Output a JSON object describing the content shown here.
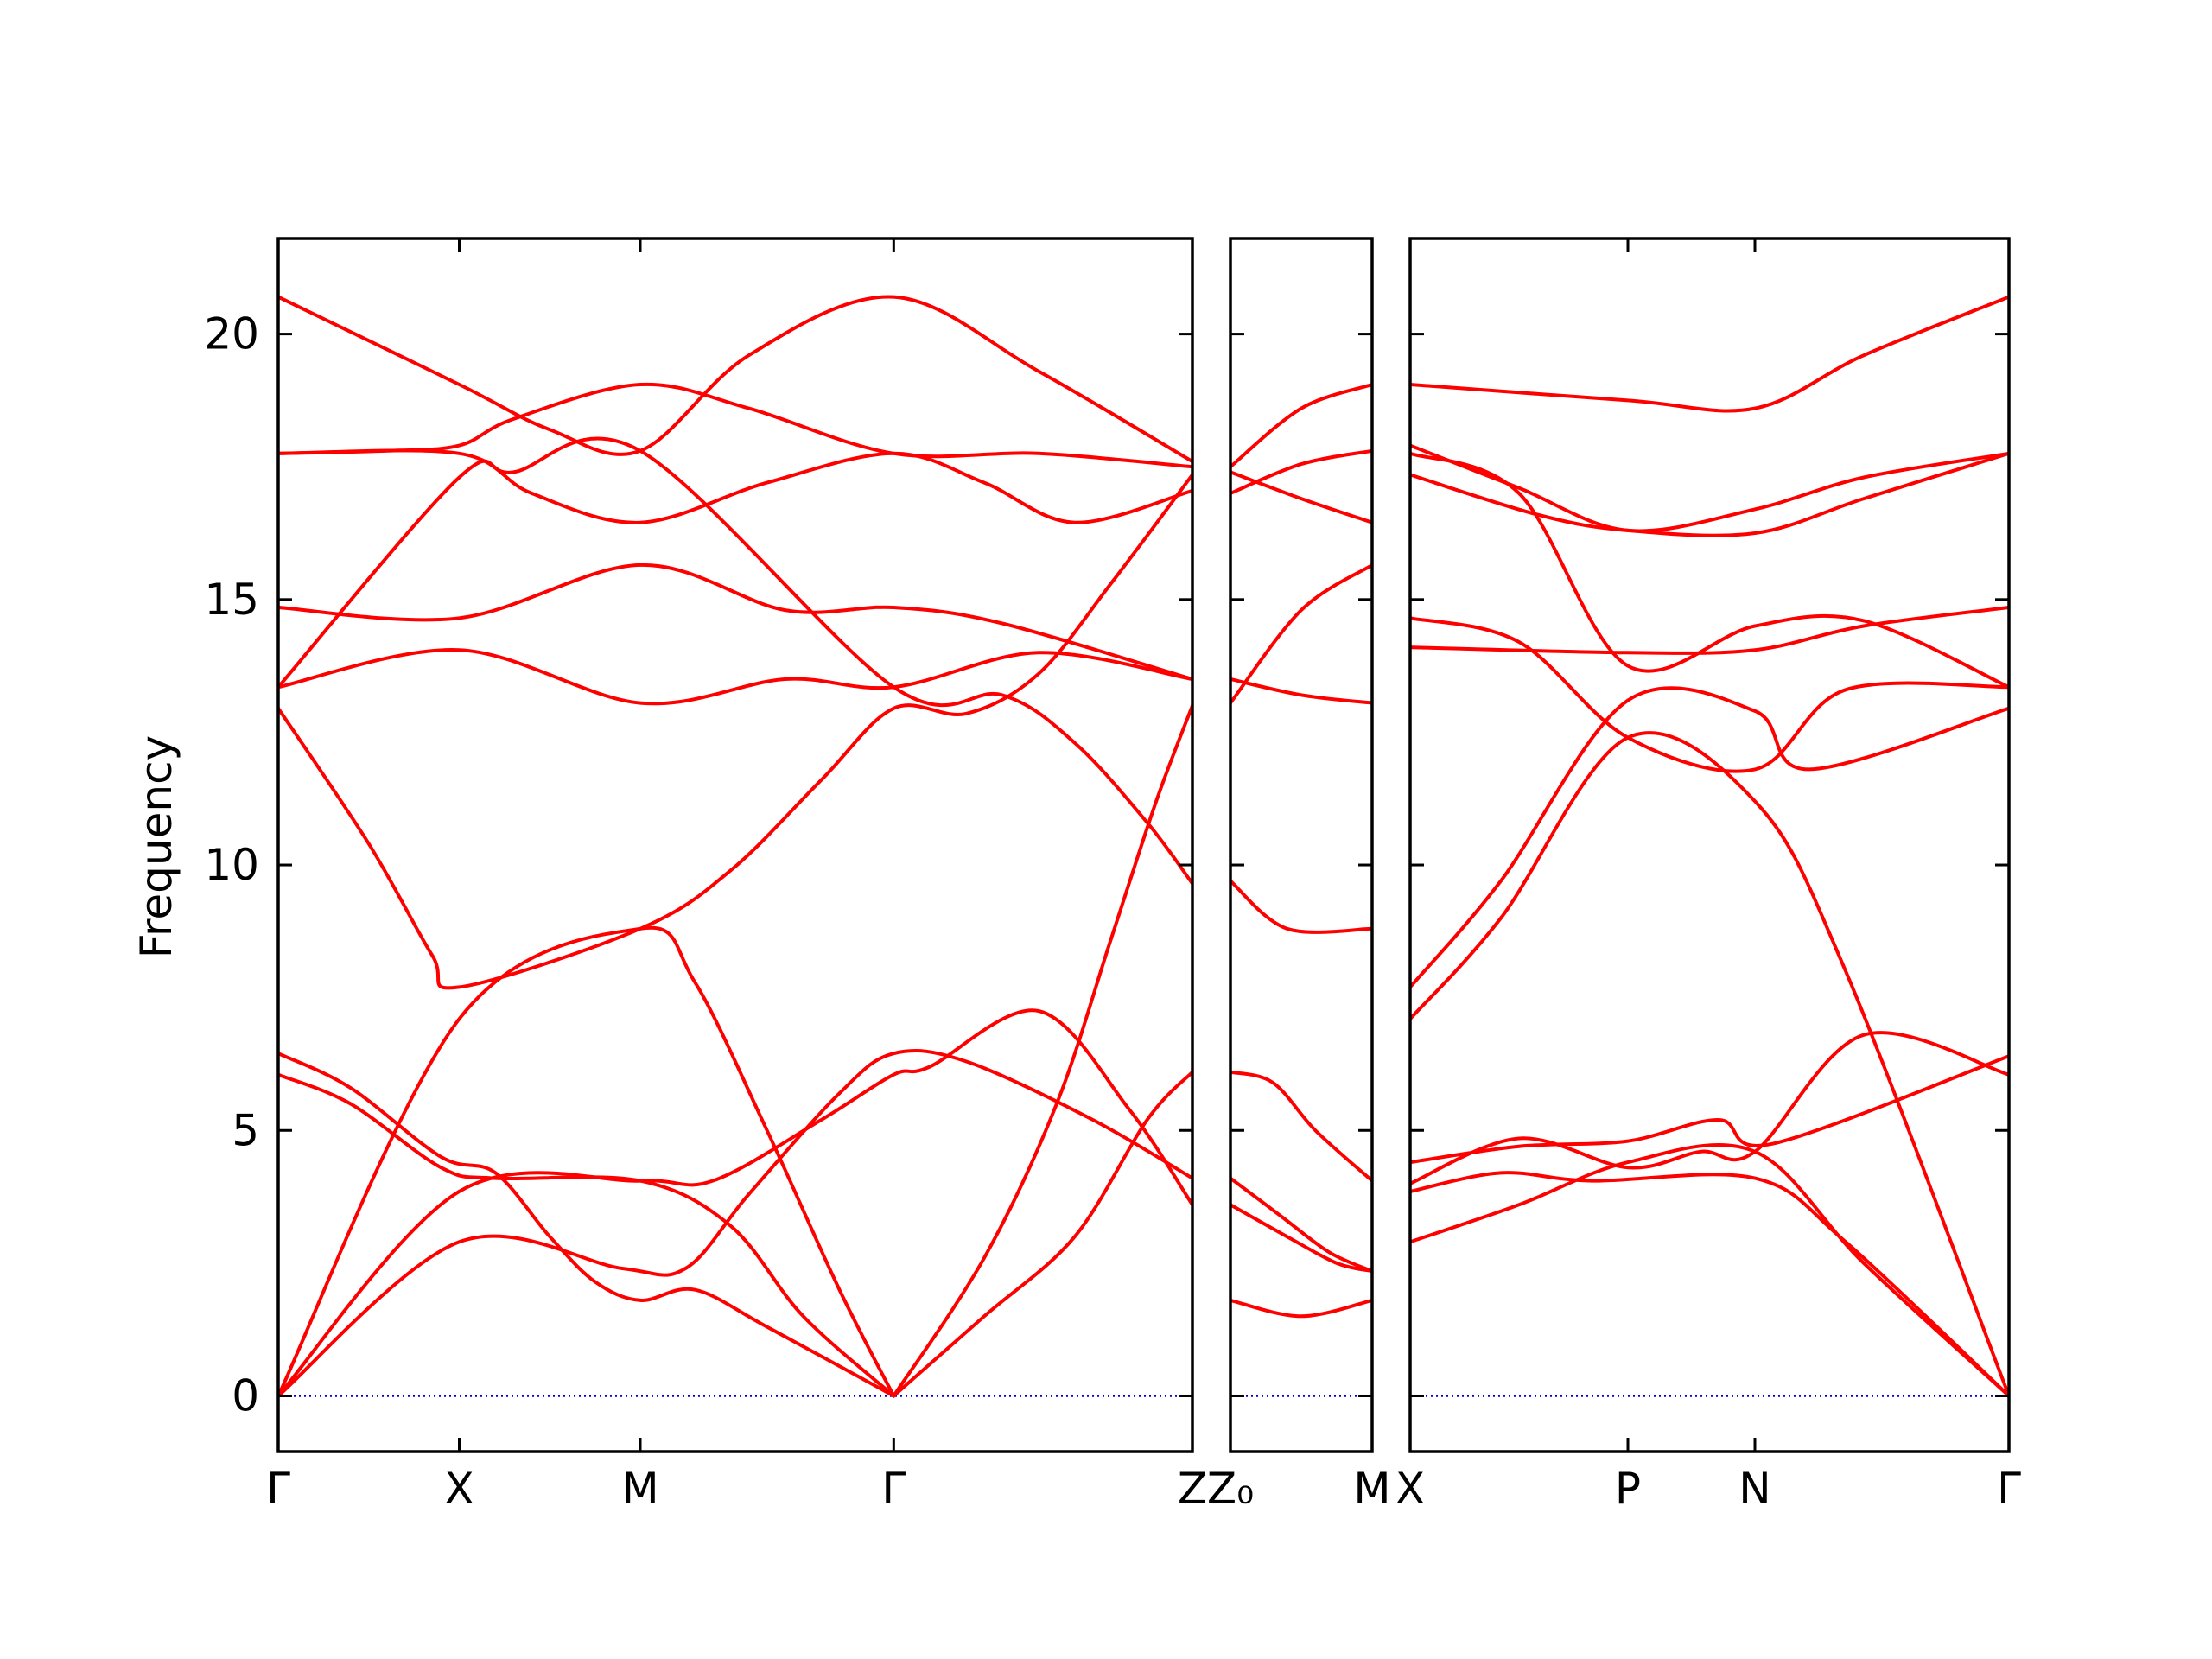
{
  "chart_data": {
    "type": "line",
    "ylabel": "Frequency",
    "ylim": [
      -1.05,
      21.8
    ],
    "yticks": [
      0,
      5,
      10,
      15,
      20
    ],
    "zero_line": {
      "y": 0,
      "color": "#0000cc",
      "style": "dotted"
    },
    "line_color": "#ff0000",
    "panels": [
      {
        "name": "panel-1",
        "xlim": [
          0,
          5.05
        ],
        "ticks": [
          {
            "x": 0.0,
            "label": "Γ"
          },
          {
            "x": 1.0,
            "label": "X"
          },
          {
            "x": 2.0,
            "label": "M"
          },
          {
            "x": 3.4,
            "label": "Γ"
          },
          {
            "x": 5.05,
            "label": "Z"
          }
        ],
        "bands": [
          [
            [
              0,
              0
            ],
            [
              1,
              7.1
            ],
            [
              2,
              8.8
            ],
            [
              2.3,
              7.8
            ],
            [
              2.7,
              5.0
            ],
            [
              3.1,
              2.0
            ],
            [
              3.4,
              0
            ]
          ],
          [
            [
              0,
              0
            ],
            [
              1,
              3.85
            ],
            [
              2,
              4.05
            ],
            [
              2.4,
              4.05
            ],
            [
              3,
              5.2
            ],
            [
              3.4,
              6.05
            ],
            [
              3.6,
              6.2
            ],
            [
              4.2,
              7.25
            ],
            [
              4.7,
              5.4
            ],
            [
              5.05,
              3.6
            ]
          ],
          [
            [
              0,
              0
            ],
            [
              1,
              2.9
            ],
            [
              1.9,
              2.4
            ],
            [
              2.25,
              2.4
            ],
            [
              2.6,
              3.8
            ],
            [
              3.1,
              5.7
            ],
            [
              3.4,
              6.45
            ],
            [
              3.8,
              6.3
            ],
            [
              4.5,
              5.2
            ],
            [
              5.05,
              4.1
            ]
          ],
          [
            [
              0,
              6.05
            ],
            [
              0.4,
              5.5
            ],
            [
              0.9,
              4.3
            ],
            [
              1.2,
              4.1
            ],
            [
              2,
              4.05
            ],
            [
              2.5,
              3.2
            ],
            [
              2.9,
              1.5
            ],
            [
              3.4,
              0
            ]
          ],
          [
            [
              0,
              6.45
            ],
            [
              0.4,
              5.8
            ],
            [
              0.9,
              4.5
            ],
            [
              1.2,
              4.2
            ],
            [
              1.5,
              3.0
            ],
            [
              1.75,
              2.15
            ],
            [
              2,
              1.8
            ],
            [
              2.3,
              2.0
            ],
            [
              2.7,
              1.3
            ],
            [
              3.4,
              0
            ]
          ],
          [
            [
              3.4,
              0
            ],
            [
              3.9,
              1.5
            ],
            [
              4.4,
              3.0
            ],
            [
              4.8,
              5.2
            ],
            [
              5.05,
              6.1
            ]
          ],
          [
            [
              3.4,
              0
            ],
            [
              3.9,
              2.6
            ],
            [
              4.3,
              5.5
            ],
            [
              4.6,
              8.6
            ],
            [
              4.85,
              11.2
            ],
            [
              5.05,
              13.0
            ]
          ],
          [
            [
              0,
              12.95
            ],
            [
              0.5,
              10.4
            ],
            [
              0.85,
              8.3
            ],
            [
              1,
              7.7
            ],
            [
              2,
              8.8
            ],
            [
              2.5,
              9.9
            ],
            [
              3,
              11.6
            ],
            [
              3.4,
              12.95
            ],
            [
              3.8,
              12.85
            ],
            [
              4.2,
              13.6
            ],
            [
              4.6,
              15.3
            ],
            [
              5.05,
              17.35
            ]
          ],
          [
            [
              0,
              13.35
            ],
            [
              1,
              17.3
            ],
            [
              1.3,
              17.4
            ],
            [
              2,
              17.8
            ],
            [
              3.4,
              13.35
            ],
            [
              4,
              13.2
            ],
            [
              4.4,
              12.3
            ],
            [
              4.8,
              10.8
            ],
            [
              5.05,
              9.65
            ]
          ],
          [
            [
              0,
              13.35
            ],
            [
              1,
              14.05
            ],
            [
              2,
              13.05
            ],
            [
              2.8,
              13.5
            ],
            [
              3.4,
              13.35
            ],
            [
              4.2,
              14.0
            ],
            [
              5.05,
              13.5
            ]
          ],
          [
            [
              0,
              14.85
            ],
            [
              1,
              14.65
            ],
            [
              2,
              15.65
            ],
            [
              2.8,
              14.8
            ],
            [
              3.4,
              14.85
            ],
            [
              4,
              14.55
            ],
            [
              5.05,
              13.5
            ]
          ],
          [
            [
              0,
              17.75
            ],
            [
              1,
              17.75
            ],
            [
              1.4,
              17.0
            ],
            [
              2,
              16.45
            ],
            [
              2.7,
              17.2
            ],
            [
              3.4,
              17.75
            ],
            [
              3.9,
              17.2
            ],
            [
              4.4,
              16.45
            ],
            [
              5.05,
              17.05
            ]
          ],
          [
            [
              0,
              17.75
            ],
            [
              0.6,
              17.8
            ],
            [
              1,
              17.9
            ],
            [
              1.3,
              18.4
            ],
            [
              2,
              19.05
            ],
            [
              2.6,
              18.6
            ],
            [
              3.4,
              17.75
            ],
            [
              4.2,
              17.75
            ],
            [
              5.05,
              17.5
            ]
          ],
          [
            [
              0,
              20.7
            ],
            [
              1,
              19.05
            ],
            [
              1.5,
              18.2
            ],
            [
              2,
              17.8
            ],
            [
              2.6,
              19.6
            ],
            [
              3.4,
              20.7
            ],
            [
              4.2,
              19.3
            ],
            [
              5.05,
              17.6
            ]
          ]
        ]
      },
      {
        "name": "panel-2",
        "xlim": [
          0,
          1
        ],
        "ticks": [
          {
            "x": 0.0,
            "label": "Z₀"
          },
          {
            "x": 1.0,
            "label": "M"
          }
        ],
        "bands": [
          [
            [
              0,
              1.8
            ],
            [
              0.5,
              1.5
            ],
            [
              1,
              1.8
            ]
          ],
          [
            [
              0,
              3.6
            ],
            [
              0.4,
              3.0
            ],
            [
              0.75,
              2.5
            ],
            [
              1,
              2.35
            ]
          ],
          [
            [
              0,
              4.1
            ],
            [
              0.35,
              3.4
            ],
            [
              0.7,
              2.7
            ],
            [
              1,
              2.35
            ]
          ],
          [
            [
              0,
              6.1
            ],
            [
              0.3,
              5.9
            ],
            [
              0.6,
              5.0
            ],
            [
              1,
              4.05
            ]
          ],
          [
            [
              0,
              9.7
            ],
            [
              0.4,
              8.8
            ],
            [
              1,
              8.8
            ]
          ],
          [
            [
              0,
              13.05
            ],
            [
              0.5,
              14.8
            ],
            [
              1,
              15.65
            ]
          ],
          [
            [
              0,
              13.5
            ],
            [
              0.5,
              13.2
            ],
            [
              1,
              13.05
            ]
          ],
          [
            [
              0,
              17.0
            ],
            [
              0.5,
              17.55
            ],
            [
              1,
              17.8
            ]
          ],
          [
            [
              0,
              17.4
            ],
            [
              0.5,
              16.9
            ],
            [
              1,
              16.45
            ]
          ],
          [
            [
              0,
              17.5
            ],
            [
              0.5,
              18.6
            ],
            [
              1,
              19.05
            ]
          ]
        ]
      },
      {
        "name": "panel-3",
        "xlim": [
          0,
          3.3
        ],
        "ticks": [
          {
            "x": 0.0,
            "label": "X"
          },
          {
            "x": 1.2,
            "label": "P"
          },
          {
            "x": 1.9,
            "label": "N"
          },
          {
            "x": 3.3,
            "label": "Γ"
          }
        ],
        "bands": [
          [
            [
              0,
              2.9
            ],
            [
              0.6,
              3.6
            ],
            [
              1.2,
              4.4
            ],
            [
              1.9,
              4.6
            ],
            [
              2.5,
              2.5
            ],
            [
              3.3,
              0
            ]
          ],
          [
            [
              0,
              3.85
            ],
            [
              0.5,
              4.2
            ],
            [
              1,
              4.05
            ],
            [
              1.9,
              4.1
            ],
            [
              2.4,
              2.9
            ],
            [
              3.3,
              0
            ]
          ],
          [
            [
              0,
              4.0
            ],
            [
              0.6,
              4.85
            ],
            [
              1.2,
              4.3
            ],
            [
              1.6,
              4.6
            ],
            [
              1.9,
              4.6
            ],
            [
              2.5,
              6.8
            ],
            [
              3.3,
              6.05
            ]
          ],
          [
            [
              0,
              4.4
            ],
            [
              0.6,
              4.7
            ],
            [
              1.2,
              4.8
            ],
            [
              1.7,
              5.2
            ],
            [
              2,
              4.75
            ],
            [
              3.3,
              6.4
            ]
          ],
          [
            [
              0,
              7.1
            ],
            [
              0.5,
              9.0
            ],
            [
              1.2,
              12.4
            ],
            [
              1.9,
              11.2
            ],
            [
              2.4,
              8.0
            ],
            [
              3.3,
              0
            ]
          ],
          [
            [
              0,
              7.7
            ],
            [
              0.5,
              9.7
            ],
            [
              1.2,
              13.1
            ],
            [
              1.9,
              12.9
            ],
            [
              2.2,
              11.8
            ],
            [
              3.3,
              12.95
            ]
          ],
          [
            [
              0,
              14.1
            ],
            [
              1.2,
              14.0
            ],
            [
              1.9,
              14.05
            ],
            [
              2.5,
              14.5
            ],
            [
              3.3,
              14.85
            ]
          ],
          [
            [
              0,
              14.65
            ],
            [
              0.6,
              14.2
            ],
            [
              1.2,
              12.4
            ],
            [
              1.9,
              11.8
            ],
            [
              2.4,
              13.3
            ],
            [
              3.3,
              13.35
            ]
          ],
          [
            [
              0,
              17.35
            ],
            [
              0.7,
              16.6
            ],
            [
              1.2,
              16.3
            ],
            [
              1.9,
              16.25
            ],
            [
              2.5,
              16.9
            ],
            [
              3.3,
              17.75
            ]
          ],
          [
            [
              0,
              17.75
            ],
            [
              0.6,
              17.0
            ],
            [
              1.2,
              13.75
            ],
            [
              1.9,
              14.5
            ],
            [
              2.5,
              14.6
            ],
            [
              3.3,
              13.35
            ]
          ],
          [
            [
              0,
              17.9
            ],
            [
              0.6,
              17.1
            ],
            [
              1.2,
              16.3
            ],
            [
              1.9,
              16.7
            ],
            [
              2.5,
              17.3
            ],
            [
              3.3,
              17.75
            ]
          ],
          [
            [
              0,
              19.05
            ],
            [
              1.2,
              18.75
            ],
            [
              1.9,
              18.6
            ],
            [
              2.5,
              19.6
            ],
            [
              3.3,
              20.7
            ]
          ]
        ]
      }
    ]
  }
}
